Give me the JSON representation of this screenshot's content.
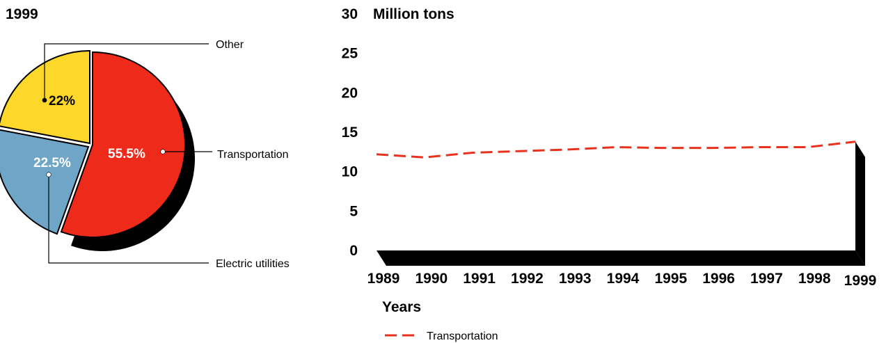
{
  "colors": {
    "red": "#ee2a1a",
    "blue": "#6fa5c6",
    "yellow": "#fdd72a",
    "shadow": "#000000",
    "line": "#e8321f"
  },
  "chart_data": [
    {
      "type": "pie",
      "title": "1999",
      "slices": [
        {
          "label": "Transportation",
          "value": 55.5,
          "value_label": "55.5%",
          "color": "#ee2a1a"
        },
        {
          "label": "Electric utilities",
          "value": 22.5,
          "value_label": "22.5%",
          "color": "#6fa5c6"
        },
        {
          "label": "Other",
          "value": 22.0,
          "value_label": "22%",
          "color": "#fdd72a"
        }
      ]
    },
    {
      "type": "line",
      "title": "",
      "ylabel": "Million tons",
      "xlabel": "Years",
      "ylim": [
        0,
        30
      ],
      "yticks": [
        0,
        5,
        10,
        15,
        20,
        25,
        30
      ],
      "x": [
        "1989",
        "1990",
        "1991",
        "1992",
        "1993",
        "1994",
        "1995",
        "1996",
        "1997",
        "1998",
        "1999"
      ],
      "series": [
        {
          "name": "Transportation",
          "style": "dashed",
          "color": "#e8321f",
          "values": [
            12.2,
            11.8,
            12.4,
            12.6,
            12.8,
            13.1,
            13.0,
            13.0,
            13.1,
            13.1,
            13.8
          ]
        }
      ],
      "legend": "bottom-left",
      "grid": false
    }
  ]
}
